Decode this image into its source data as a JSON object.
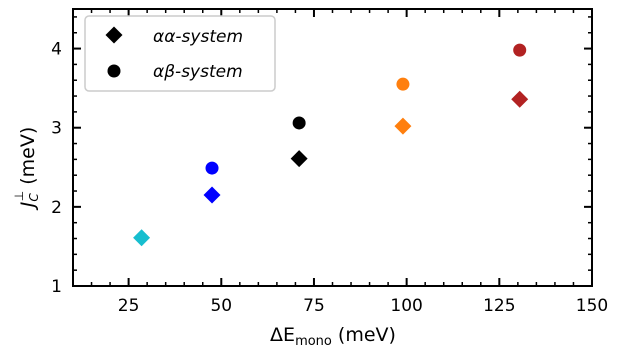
{
  "chart_data": {
    "type": "scatter",
    "title": "",
    "xlabel": "ΔE_mono (meV)",
    "ylabel": "J_C^⊥ (meV)",
    "axis_labels": {
      "x": {
        "prefix": "ΔE",
        "sub": "mono",
        "unit": "(meV)"
      },
      "y": {
        "main": "J",
        "sub": "C",
        "sup": "⊥",
        "unit": "(meV)"
      }
    },
    "xlim": [
      10,
      150
    ],
    "ylim": [
      1,
      4.5
    ],
    "xticks": [
      25,
      50,
      75,
      100,
      125,
      150
    ],
    "yticks": [
      1,
      2,
      3,
      4
    ],
    "xtick_labels": [
      "25",
      "50",
      "75",
      "100",
      "125",
      "150"
    ],
    "ytick_labels": [
      "1",
      "2",
      "3",
      "4"
    ],
    "grid": false,
    "legend_position": "upper-left",
    "series": [
      {
        "name": "αα-system",
        "marker": "diamond",
        "points": [
          {
            "x": 28.5,
            "y": 1.61,
            "color": "#17becf"
          },
          {
            "x": 47.5,
            "y": 2.15,
            "color": "#0000ff"
          },
          {
            "x": 71.0,
            "y": 2.61,
            "color": "#000000"
          },
          {
            "x": 99.0,
            "y": 3.02,
            "color": "#ff7f0e"
          },
          {
            "x": 130.5,
            "y": 3.36,
            "color": "#b22222"
          }
        ]
      },
      {
        "name": "αβ-system",
        "marker": "circle",
        "points": [
          {
            "x": 47.5,
            "y": 2.49,
            "color": "#0000ff"
          },
          {
            "x": 71.0,
            "y": 3.06,
            "color": "#000000"
          },
          {
            "x": 99.0,
            "y": 3.55,
            "color": "#ff7f0e"
          },
          {
            "x": 130.5,
            "y": 3.98,
            "color": "#b22222"
          }
        ]
      }
    ],
    "legend": [
      {
        "label": "αα-system",
        "marker": "diamond",
        "color": "#000000"
      },
      {
        "label": "αβ-system",
        "marker": "circle",
        "color": "#000000"
      }
    ]
  }
}
